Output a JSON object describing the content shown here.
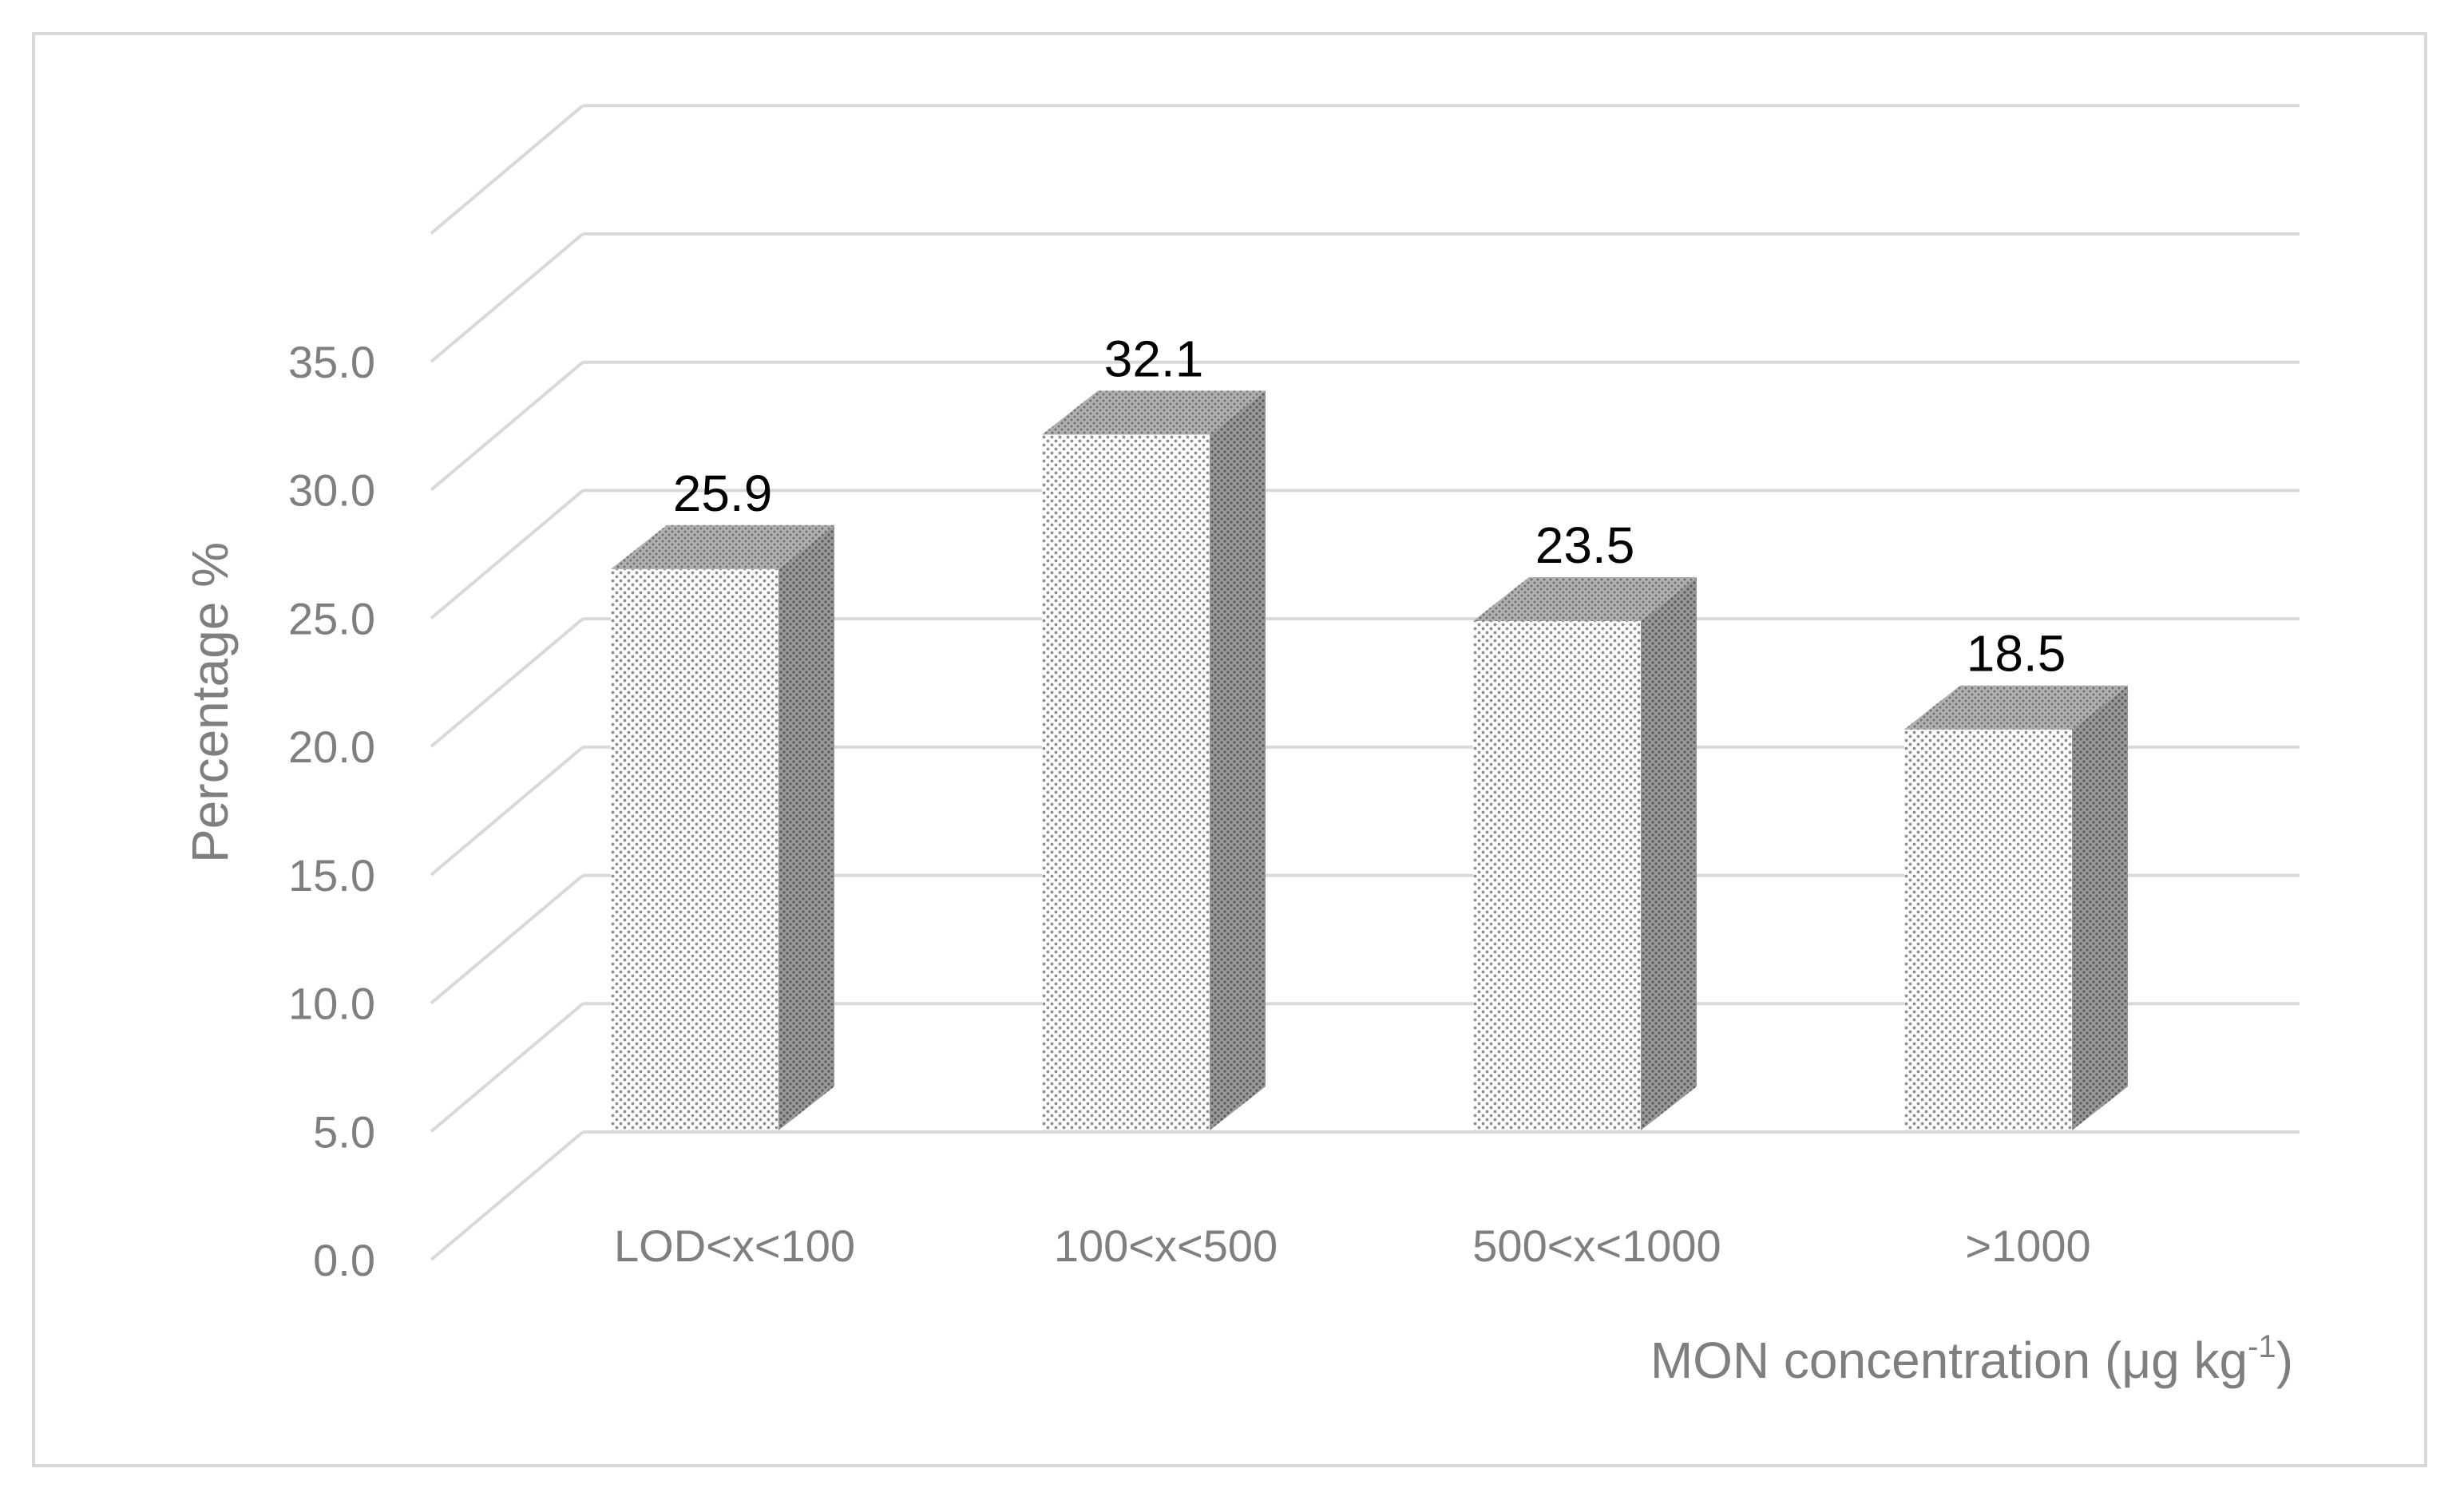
{
  "chart_data": {
    "type": "bar",
    "style": "3d-column",
    "categories": [
      "LOD<x<100",
      "100<x<500",
      "500<x<1000",
      ">1000"
    ],
    "values": [
      25.9,
      32.1,
      23.5,
      18.5
    ],
    "data_labels": [
      "25.9",
      "32.1",
      "23.5",
      "18.5"
    ],
    "title": "",
    "xlabel": "MON concentration (μg kg",
    "xlabel_superscript": "-1",
    "xlabel_suffix": ")",
    "ylabel": "Percentage %",
    "ylim": [
      0,
      35
    ],
    "yticks": [
      "0.0",
      "5.0",
      "10.0",
      "15.0",
      "20.0",
      "25.0",
      "30.0",
      "35.0"
    ],
    "grid": true,
    "legend": "none",
    "colors": {
      "grid": "#d9d9d9",
      "axis_text": "#7f7f7f",
      "bar_front_dot": "#8c8c8c",
      "bar_side": "#8a8a8a",
      "label": "#000000"
    }
  }
}
